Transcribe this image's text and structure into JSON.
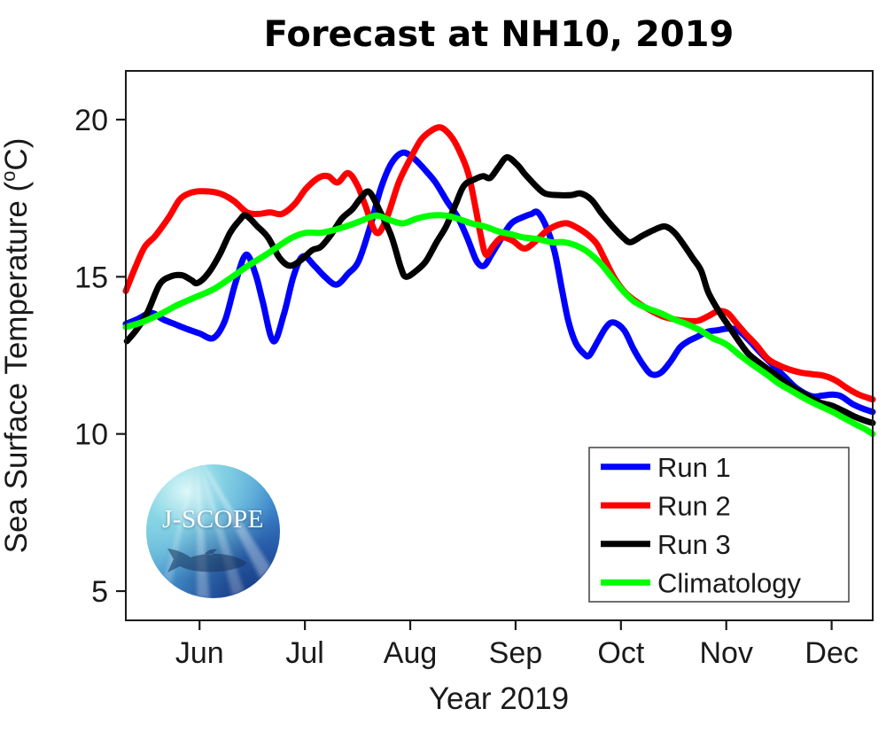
{
  "figure": {
    "title": "Forecast at NH10, 2019",
    "xlabel": "Year 2019",
    "ylabel_prefix": "Sea Surface Temperature (",
    "ylabel_degree": "o",
    "ylabel_suffix": "C)",
    "axis_color": "#1a1a1a",
    "background": "#ffffff"
  },
  "logo": {
    "label": "J-SCOPE"
  },
  "chart_data": {
    "type": "line",
    "title": "Forecast at NH10, 2019",
    "xlabel": "Year 2019",
    "ylabel": "Sea Surface Temperature (°C)",
    "x_unit": "months, 0 = Jun 1 2019",
    "xlim": [
      -0.7,
      6.39
    ],
    "ylim": [
      4.07,
      21.55
    ],
    "yticks": [
      5,
      10,
      15,
      20
    ],
    "xticks": {
      "values": [
        0,
        1,
        2,
        3,
        4,
        5,
        6
      ],
      "labels": [
        "Jun",
        "Jul",
        "Aug",
        "Sep",
        "Oct",
        "Nov",
        "Dec"
      ]
    },
    "grid": false,
    "legend": {
      "position": "lower right",
      "entries": [
        "Run 1",
        "Run 2",
        "Run 3",
        "Climatology"
      ]
    },
    "series": [
      {
        "name": "Run 1",
        "color": "#0000ff",
        "points": [
          [
            -0.7,
            13.5
          ],
          [
            -0.59,
            13.65
          ],
          [
            -0.46,
            13.85
          ],
          [
            -0.35,
            13.65
          ],
          [
            -0.24,
            13.5
          ],
          [
            -0.13,
            13.35
          ],
          [
            0,
            13.2
          ],
          [
            0.13,
            13.05
          ],
          [
            0.24,
            13.6
          ],
          [
            0.34,
            14.8
          ],
          [
            0.44,
            15.7
          ],
          [
            0.53,
            15.1
          ],
          [
            0.6,
            14.2
          ],
          [
            0.7,
            12.95
          ],
          [
            0.8,
            13.8
          ],
          [
            0.89,
            15.0
          ],
          [
            0.98,
            15.65
          ],
          [
            1.09,
            15.35
          ],
          [
            1.19,
            15.0
          ],
          [
            1.3,
            14.75
          ],
          [
            1.41,
            15.1
          ],
          [
            1.51,
            15.5
          ],
          [
            1.62,
            16.6
          ],
          [
            1.72,
            17.8
          ],
          [
            1.82,
            18.6
          ],
          [
            1.93,
            18.95
          ],
          [
            2.04,
            18.75
          ],
          [
            2.14,
            18.4
          ],
          [
            2.24,
            18.0
          ],
          [
            2.35,
            17.4
          ],
          [
            2.45,
            16.9
          ],
          [
            2.54,
            16.25
          ],
          [
            2.63,
            15.5
          ],
          [
            2.7,
            15.35
          ],
          [
            2.77,
            15.7
          ],
          [
            2.86,
            16.2
          ],
          [
            2.96,
            16.7
          ],
          [
            3.07,
            16.9
          ],
          [
            3.15,
            17.0
          ],
          [
            3.21,
            17.05
          ],
          [
            3.29,
            16.6
          ],
          [
            3.37,
            15.8
          ],
          [
            3.44,
            14.6
          ],
          [
            3.5,
            13.6
          ],
          [
            3.57,
            12.9
          ],
          [
            3.65,
            12.55
          ],
          [
            3.7,
            12.5
          ],
          [
            3.78,
            12.95
          ],
          [
            3.86,
            13.4
          ],
          [
            3.93,
            13.55
          ],
          [
            4.03,
            13.3
          ],
          [
            4.12,
            12.7
          ],
          [
            4.21,
            12.2
          ],
          [
            4.29,
            11.9
          ],
          [
            4.38,
            11.95
          ],
          [
            4.47,
            12.3
          ],
          [
            4.56,
            12.75
          ],
          [
            4.64,
            12.95
          ],
          [
            4.73,
            13.1
          ],
          [
            4.82,
            13.25
          ],
          [
            4.92,
            13.3
          ],
          [
            5.02,
            13.35
          ],
          [
            5.11,
            13.3
          ],
          [
            5.21,
            13.0
          ],
          [
            5.32,
            12.6
          ],
          [
            5.44,
            12.2
          ],
          [
            5.56,
            11.8
          ],
          [
            5.67,
            11.45
          ],
          [
            5.81,
            11.2
          ],
          [
            5.91,
            11.22
          ],
          [
            6.01,
            11.25
          ],
          [
            6.09,
            11.2
          ],
          [
            6.2,
            10.95
          ],
          [
            6.3,
            10.8
          ],
          [
            6.39,
            10.7
          ]
        ]
      },
      {
        "name": "Run 2",
        "color": "#ff0000",
        "points": [
          [
            -0.7,
            14.55
          ],
          [
            -0.61,
            15.3
          ],
          [
            -0.52,
            15.95
          ],
          [
            -0.42,
            16.3
          ],
          [
            -0.29,
            16.9
          ],
          [
            -0.19,
            17.45
          ],
          [
            -0.1,
            17.65
          ],
          [
            0,
            17.72
          ],
          [
            0.13,
            17.7
          ],
          [
            0.23,
            17.6
          ],
          [
            0.33,
            17.4
          ],
          [
            0.45,
            17.05
          ],
          [
            0.56,
            17.0
          ],
          [
            0.67,
            17.05
          ],
          [
            0.78,
            17.0
          ],
          [
            0.9,
            17.3
          ],
          [
            1.01,
            17.8
          ],
          [
            1.13,
            18.15
          ],
          [
            1.22,
            18.2
          ],
          [
            1.31,
            18.0
          ],
          [
            1.41,
            18.3
          ],
          [
            1.5,
            17.9
          ],
          [
            1.57,
            17.3
          ],
          [
            1.68,
            16.4
          ],
          [
            1.78,
            16.9
          ],
          [
            1.89,
            18.0
          ],
          [
            2.0,
            18.75
          ],
          [
            2.1,
            19.35
          ],
          [
            2.2,
            19.65
          ],
          [
            2.29,
            19.75
          ],
          [
            2.38,
            19.5
          ],
          [
            2.46,
            19.05
          ],
          [
            2.55,
            18.3
          ],
          [
            2.62,
            17.2
          ],
          [
            2.67,
            16.3
          ],
          [
            2.72,
            15.7
          ],
          [
            2.79,
            16.0
          ],
          [
            2.87,
            16.25
          ],
          [
            2.97,
            16.15
          ],
          [
            3.08,
            15.9
          ],
          [
            3.18,
            16.1
          ],
          [
            3.29,
            16.45
          ],
          [
            3.4,
            16.65
          ],
          [
            3.49,
            16.7
          ],
          [
            3.59,
            16.55
          ],
          [
            3.68,
            16.35
          ],
          [
            3.77,
            16.05
          ],
          [
            3.84,
            15.6
          ],
          [
            3.94,
            14.95
          ],
          [
            4.04,
            14.5
          ],
          [
            4.15,
            14.2
          ],
          [
            4.27,
            13.95
          ],
          [
            4.39,
            13.75
          ],
          [
            4.5,
            13.65
          ],
          [
            4.61,
            13.6
          ],
          [
            4.73,
            13.6
          ],
          [
            4.83,
            13.75
          ],
          [
            4.92,
            13.9
          ],
          [
            5.01,
            13.85
          ],
          [
            5.09,
            13.55
          ],
          [
            5.18,
            13.2
          ],
          [
            5.28,
            12.85
          ],
          [
            5.39,
            12.4
          ],
          [
            5.49,
            12.2
          ],
          [
            5.6,
            12.05
          ],
          [
            5.71,
            11.95
          ],
          [
            5.82,
            11.9
          ],
          [
            5.93,
            11.85
          ],
          [
            6.04,
            11.7
          ],
          [
            6.15,
            11.45
          ],
          [
            6.26,
            11.25
          ],
          [
            6.39,
            11.1
          ]
        ]
      },
      {
        "name": "Run 3",
        "color": "#000000",
        "points": [
          [
            -0.69,
            12.95
          ],
          [
            -0.59,
            13.35
          ],
          [
            -0.49,
            13.9
          ],
          [
            -0.38,
            14.75
          ],
          [
            -0.28,
            15.0
          ],
          [
            -0.17,
            15.05
          ],
          [
            -0.08,
            14.9
          ],
          [
            -0.02,
            14.8
          ],
          [
            0.08,
            15.1
          ],
          [
            0.19,
            15.7
          ],
          [
            0.29,
            16.4
          ],
          [
            0.38,
            16.8
          ],
          [
            0.44,
            16.95
          ],
          [
            0.55,
            16.6
          ],
          [
            0.65,
            16.25
          ],
          [
            0.76,
            15.6
          ],
          [
            0.86,
            15.35
          ],
          [
            0.97,
            15.55
          ],
          [
            1.07,
            15.85
          ],
          [
            1.15,
            15.95
          ],
          [
            1.25,
            16.35
          ],
          [
            1.35,
            16.85
          ],
          [
            1.45,
            17.15
          ],
          [
            1.53,
            17.5
          ],
          [
            1.61,
            17.7
          ],
          [
            1.71,
            17.1
          ],
          [
            1.82,
            16.3
          ],
          [
            1.91,
            15.3
          ],
          [
            1.96,
            15.0
          ],
          [
            2.06,
            15.2
          ],
          [
            2.15,
            15.5
          ],
          [
            2.25,
            16.1
          ],
          [
            2.34,
            16.6
          ],
          [
            2.43,
            17.3
          ],
          [
            2.51,
            17.9
          ],
          [
            2.61,
            18.1
          ],
          [
            2.69,
            18.2
          ],
          [
            2.76,
            18.15
          ],
          [
            2.84,
            18.5
          ],
          [
            2.92,
            18.8
          ],
          [
            3.02,
            18.55
          ],
          [
            3.08,
            18.3
          ],
          [
            3.19,
            17.9
          ],
          [
            3.28,
            17.65
          ],
          [
            3.4,
            17.6
          ],
          [
            3.53,
            17.6
          ],
          [
            3.62,
            17.65
          ],
          [
            3.72,
            17.45
          ],
          [
            3.82,
            17.0
          ],
          [
            3.92,
            16.6
          ],
          [
            4.02,
            16.25
          ],
          [
            4.09,
            16.1
          ],
          [
            4.2,
            16.3
          ],
          [
            4.32,
            16.5
          ],
          [
            4.42,
            16.6
          ],
          [
            4.51,
            16.4
          ],
          [
            4.6,
            16.0
          ],
          [
            4.68,
            15.6
          ],
          [
            4.76,
            15.2
          ],
          [
            4.83,
            14.5
          ],
          [
            4.93,
            13.9
          ],
          [
            5.02,
            13.45
          ],
          [
            5.11,
            13.0
          ],
          [
            5.21,
            12.55
          ],
          [
            5.32,
            12.25
          ],
          [
            5.44,
            11.95
          ],
          [
            5.56,
            11.65
          ],
          [
            5.67,
            11.4
          ],
          [
            5.78,
            11.2
          ],
          [
            5.89,
            11.0
          ],
          [
            6.0,
            10.9
          ],
          [
            6.1,
            10.75
          ],
          [
            6.22,
            10.55
          ],
          [
            6.32,
            10.42
          ],
          [
            6.39,
            10.35
          ]
        ]
      },
      {
        "name": "Climatology",
        "color": "#00ff00",
        "points": [
          [
            -0.7,
            13.4
          ],
          [
            -0.55,
            13.55
          ],
          [
            -0.38,
            13.8
          ],
          [
            -0.21,
            14.1
          ],
          [
            -0.04,
            14.35
          ],
          [
            0.13,
            14.6
          ],
          [
            0.29,
            14.95
          ],
          [
            0.46,
            15.35
          ],
          [
            0.63,
            15.7
          ],
          [
            0.76,
            16.0
          ],
          [
            0.88,
            16.25
          ],
          [
            1.01,
            16.4
          ],
          [
            1.15,
            16.4
          ],
          [
            1.29,
            16.5
          ],
          [
            1.43,
            16.65
          ],
          [
            1.55,
            16.8
          ],
          [
            1.68,
            16.95
          ],
          [
            1.81,
            16.8
          ],
          [
            1.93,
            16.7
          ],
          [
            2.06,
            16.85
          ],
          [
            2.2,
            16.95
          ],
          [
            2.33,
            16.95
          ],
          [
            2.45,
            16.85
          ],
          [
            2.58,
            16.7
          ],
          [
            2.71,
            16.6
          ],
          [
            2.83,
            16.45
          ],
          [
            2.96,
            16.35
          ],
          [
            3.08,
            16.25
          ],
          [
            3.21,
            16.2
          ],
          [
            3.34,
            16.1
          ],
          [
            3.46,
            16.1
          ],
          [
            3.57,
            16.0
          ],
          [
            3.68,
            15.8
          ],
          [
            3.8,
            15.45
          ],
          [
            3.91,
            15.0
          ],
          [
            4.02,
            14.55
          ],
          [
            4.13,
            14.2
          ],
          [
            4.25,
            14.0
          ],
          [
            4.37,
            13.85
          ],
          [
            4.5,
            13.65
          ],
          [
            4.62,
            13.5
          ],
          [
            4.75,
            13.3
          ],
          [
            4.87,
            13.05
          ],
          [
            5.0,
            12.85
          ],
          [
            5.13,
            12.5
          ],
          [
            5.25,
            12.2
          ],
          [
            5.38,
            11.9
          ],
          [
            5.5,
            11.6
          ],
          [
            5.63,
            11.35
          ],
          [
            5.76,
            11.1
          ],
          [
            5.88,
            10.9
          ],
          [
            6.01,
            10.7
          ],
          [
            6.12,
            10.5
          ],
          [
            6.23,
            10.3
          ],
          [
            6.32,
            10.15
          ],
          [
            6.39,
            10.0
          ]
        ]
      }
    ]
  }
}
